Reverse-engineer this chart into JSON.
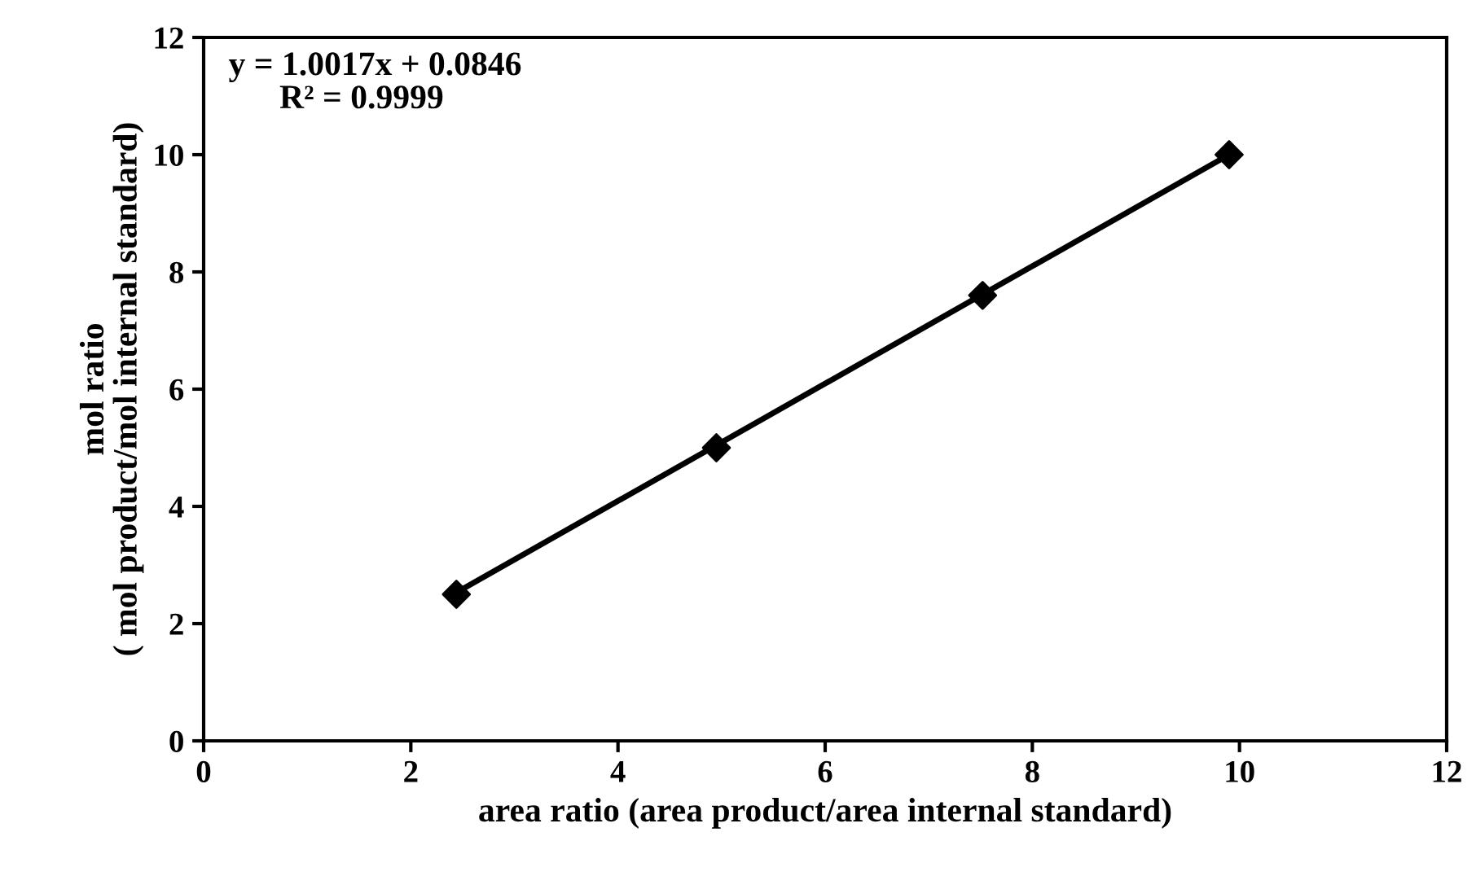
{
  "chart_data": {
    "type": "scatter",
    "xlabel": "area ratio (area product/area internal standard)",
    "ylabel": "mol ratio\n( mol product/mol internal standard)",
    "series": [
      {
        "color": "#000000",
        "marker": "diamond",
        "x": [
          2.44,
          4.95,
          7.52,
          9.9
        ],
        "values": [
          2.5,
          5.0,
          7.6,
          10.0
        ]
      },
      {
        "type": "line",
        "color": "#000000",
        "marker": "none",
        "line_style": "solid",
        "x": [
          2.44,
          9.9
        ],
        "values": [
          2.53,
          10.0
        ]
      }
    ],
    "annotations": [
      "y = 1.0017x + 0.0846\n      R² = 0.9999"
    ],
    "xlim": [
      0,
      12
    ],
    "xticks": [
      0,
      2,
      4,
      6,
      8,
      10,
      12
    ],
    "ylim": [
      0,
      12
    ],
    "yticks": [
      0,
      2,
      4,
      6,
      8,
      10,
      12
    ],
    "grid": false,
    "legend": false
  }
}
